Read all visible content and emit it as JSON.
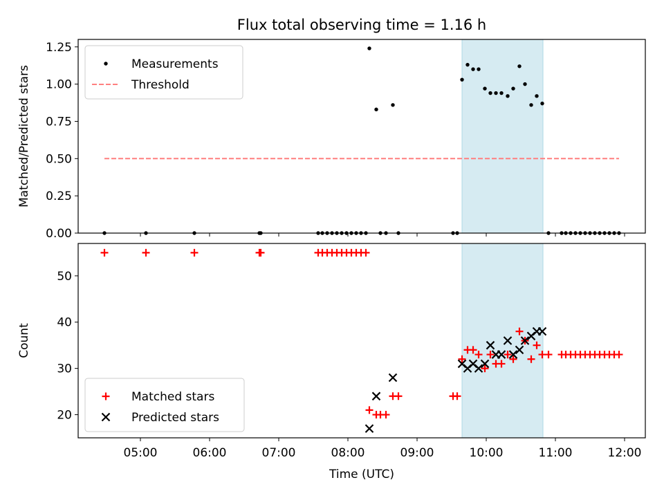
{
  "chart_data": {
    "type": "scatter",
    "title": "Flux total observing time = 1.16 h",
    "xlabel": "Time (UTC)",
    "x_ticks": [
      "05:00",
      "06:00",
      "07:00",
      "08:00",
      "09:00",
      "10:00",
      "11:00",
      "12:00"
    ],
    "x_range_hours": [
      4.1,
      12.3
    ],
    "highlight_interval_hours": [
      9.65,
      10.82
    ],
    "highlight_color": "#add8e6",
    "panels": [
      {
        "id": "ratio",
        "ylabel": "Matched/Predicted stars",
        "ylim": [
          0,
          1.3
        ],
        "y_ticks": [
          "0.00",
          "0.25",
          "0.50",
          "0.75",
          "1.00",
          "1.25"
        ],
        "legend": {
          "position": "upper left",
          "entries": [
            "Measurements",
            "Threshold"
          ]
        },
        "threshold": {
          "name": "Threshold",
          "value": 0.5,
          "x_range": [
            4.48,
            11.92
          ],
          "color": "#ff7f7f"
        },
        "series": [
          {
            "name": "Measurements",
            "color": "#000000",
            "marker": "dot",
            "x": [
              4.48,
              5.08,
              5.78,
              6.72,
              6.74,
              7.57,
              7.63,
              7.7,
              7.77,
              7.84,
              7.91,
              7.98,
              8.05,
              8.12,
              8.19,
              8.26,
              8.31,
              8.41,
              8.47,
              8.55,
              8.65,
              8.73,
              9.52,
              9.58,
              9.65,
              9.73,
              9.81,
              9.89,
              9.98,
              10.06,
              10.14,
              10.22,
              10.31,
              10.39,
              10.48,
              10.56,
              10.65,
              10.73,
              10.81,
              10.9,
              11.09,
              11.15,
              11.22,
              11.29,
              11.36,
              11.43,
              11.5,
              11.57,
              11.64,
              11.71,
              11.78,
              11.85,
              11.92
            ],
            "y": [
              0,
              0,
              0,
              0,
              0,
              0,
              0,
              0,
              0,
              0,
              0,
              0,
              0,
              0,
              0,
              0,
              1.24,
              0.83,
              0,
              0,
              0.86,
              0,
              0,
              0,
              1.03,
              1.13,
              1.1,
              1.1,
              0.97,
              0.94,
              0.94,
              0.94,
              0.92,
              0.97,
              1.12,
              1.0,
              0.86,
              0.92,
              0.87,
              0,
              0,
              0,
              0,
              0,
              0,
              0,
              0,
              0,
              0,
              0,
              0,
              0,
              0
            ]
          }
        ]
      },
      {
        "id": "counts",
        "ylabel": "Count",
        "ylim": [
          15,
          57
        ],
        "y_ticks": [
          "20",
          "30",
          "40",
          "50"
        ],
        "legend": {
          "position": "lower left",
          "entries": [
            "Matched stars",
            "Predicted stars"
          ]
        },
        "series": [
          {
            "name": "Matched stars",
            "color": "#ff0000",
            "marker": "plus",
            "x": [
              4.48,
              5.08,
              5.78,
              6.72,
              6.74,
              7.57,
              7.63,
              7.7,
              7.77,
              7.84,
              7.91,
              7.98,
              8.05,
              8.12,
              8.19,
              8.26,
              8.31,
              8.41,
              8.47,
              8.55,
              8.65,
              8.73,
              9.52,
              9.58,
              9.65,
              9.73,
              9.81,
              9.89,
              9.98,
              10.06,
              10.14,
              10.22,
              10.31,
              10.39,
              10.48,
              10.56,
              10.65,
              10.73,
              10.81,
              10.9,
              11.09,
              11.15,
              11.22,
              11.29,
              11.36,
              11.43,
              11.5,
              11.57,
              11.64,
              11.71,
              11.78,
              11.85,
              11.92
            ],
            "y": [
              55,
              55,
              55,
              55,
              55,
              55,
              55,
              55,
              55,
              55,
              55,
              55,
              55,
              55,
              55,
              55,
              21,
              20,
              20,
              20,
              24,
              24,
              24,
              24,
              32,
              34,
              34,
              33,
              30,
              33,
              31,
              31,
              33,
              32,
              38,
              36,
              32,
              35,
              33,
              33,
              33,
              33,
              33,
              33,
              33,
              33,
              33,
              33,
              33,
              33,
              33,
              33,
              33
            ]
          },
          {
            "name": "Predicted stars",
            "color": "#000000",
            "marker": "x",
            "x": [
              8.31,
              8.41,
              8.65,
              9.65,
              9.73,
              9.81,
              9.89,
              9.98,
              10.06,
              10.14,
              10.22,
              10.31,
              10.39,
              10.48,
              10.56,
              10.65,
              10.73,
              10.81
            ],
            "y": [
              17,
              24,
              28,
              31,
              30,
              31,
              30,
              31,
              35,
              33,
              33,
              36,
              33,
              34,
              36,
              37,
              38,
              38
            ]
          }
        ]
      }
    ]
  }
}
